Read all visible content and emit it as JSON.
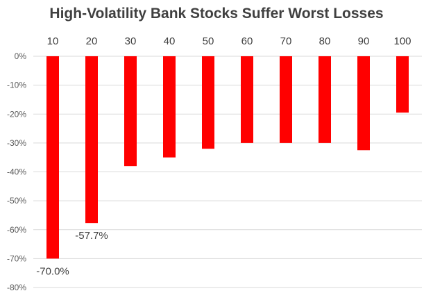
{
  "chart_data": {
    "type": "bar",
    "title": "High-Volatility Bank Stocks Suffer Worst Losses",
    "xlabel": "",
    "ylabel": "",
    "categories": [
      "10",
      "20",
      "30",
      "40",
      "50",
      "60",
      "70",
      "80",
      "90",
      "100"
    ],
    "values": [
      -70.0,
      -57.7,
      -38.0,
      -35.0,
      -32.0,
      -30.0,
      -30.0,
      -30.0,
      -32.5,
      -19.5
    ],
    "data_labels": [
      "-70.0%",
      "-57.7%",
      "",
      "",
      "",
      "",
      "",
      "",
      "",
      ""
    ],
    "y_ticks": [
      "0%",
      "-10%",
      "-20%",
      "-30%",
      "-40%",
      "-50%",
      "-60%",
      "-70%",
      "-80%"
    ],
    "ylim": [
      -80,
      0
    ],
    "x_axis_position": "top",
    "grid": true,
    "legend": "none",
    "bar_color": "#ff0000",
    "grid_color": "#d9d9d9"
  }
}
